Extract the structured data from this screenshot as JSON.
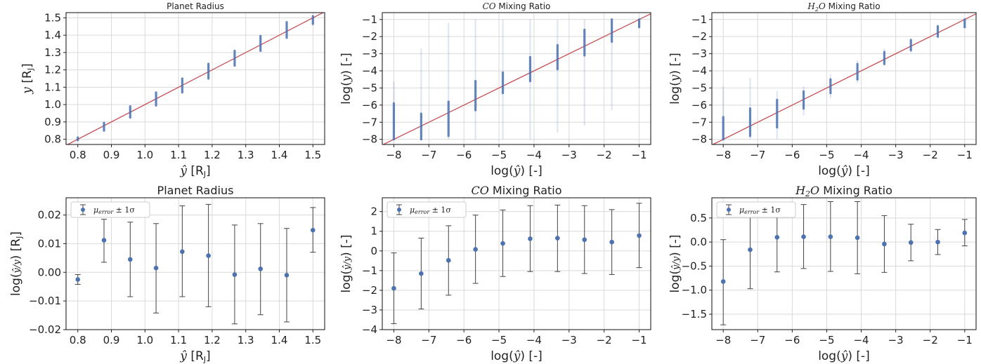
{
  "colors": {
    "series": "#4c72b0",
    "diagonal": "#c44e52",
    "errorbar": "#444444",
    "grid": "#d9d9d9",
    "axis": "#222222"
  },
  "chart_data": [
    {
      "id": "scatter-planet-radius",
      "type": "scatter",
      "title": "Planet Radius",
      "xlabel": "ŷ [RJ]",
      "ylabel": "y [RJ]",
      "xlim": [
        0.765,
        1.535
      ],
      "ylim": [
        0.77,
        1.53
      ],
      "xticks": [
        "0.8",
        "0.9",
        "1.0",
        "1.1",
        "1.2",
        "1.3",
        "1.4",
        "1.5"
      ],
      "xtick_values": [
        0.8,
        0.9,
        1.0,
        1.1,
        1.2,
        1.3,
        1.4,
        1.5
      ],
      "yticks": [
        "0.8",
        "0.9",
        "1.0",
        "1.1",
        "1.2",
        "1.3",
        "1.4",
        "1.5"
      ],
      "ytick_values": [
        0.8,
        0.9,
        1.0,
        1.1,
        1.2,
        1.3,
        1.4,
        1.5
      ],
      "grid": true,
      "identity_line": true,
      "columns": [
        {
          "x": 0.8,
          "y_low": 0.795,
          "y_high": 0.81
        },
        {
          "x": 0.878,
          "y_low": 0.85,
          "y_high": 0.895
        },
        {
          "x": 0.956,
          "y_low": 0.925,
          "y_high": 0.99
        },
        {
          "x": 1.033,
          "y_low": 0.995,
          "y_high": 1.07
        },
        {
          "x": 1.111,
          "y_low": 1.07,
          "y_high": 1.15
        },
        {
          "x": 1.189,
          "y_low": 1.15,
          "y_high": 1.235
        },
        {
          "x": 1.267,
          "y_low": 1.225,
          "y_high": 1.31
        },
        {
          "x": 1.344,
          "y_low": 1.31,
          "y_high": 1.395
        },
        {
          "x": 1.422,
          "y_low": 1.385,
          "y_high": 1.475
        },
        {
          "x": 1.5,
          "y_low": 1.465,
          "y_high": 1.51
        }
      ]
    },
    {
      "id": "scatter-co-mixing",
      "type": "scatter",
      "title": "CO Mixing Ratio",
      "xlabel": "log(ŷ) [-]",
      "ylabel": "log(y) [-]",
      "xlim": [
        -8.33,
        -0.67
      ],
      "ylim": [
        -8.3,
        -0.6
      ],
      "xticks": [
        "−8",
        "−7",
        "−6",
        "−5",
        "−4",
        "−3",
        "−2",
        "−1"
      ],
      "xtick_values": [
        -8,
        -7,
        -6,
        -5,
        -4,
        -3,
        -2,
        -1
      ],
      "yticks": [
        "−8",
        "−7",
        "−6",
        "−5",
        "−4",
        "−3",
        "−2",
        "−1"
      ],
      "ytick_values": [
        -8,
        -7,
        -6,
        -5,
        -4,
        -3,
        -2,
        -1
      ],
      "grid": true,
      "identity_line": true,
      "columns": [
        {
          "x": -8.0,
          "y_low": -8.0,
          "y_high": -4.6,
          "dense_low": -8.0,
          "dense_high": -5.9
        },
        {
          "x": -7.22,
          "y_low": -8.0,
          "y_high": -2.7,
          "dense_low": -8.0,
          "dense_high": -6.5
        },
        {
          "x": -6.44,
          "y_low": -8.0,
          "y_high": -1.2,
          "dense_low": -7.8,
          "dense_high": -5.8
        },
        {
          "x": -5.67,
          "y_low": -8.0,
          "y_high": -1.0,
          "dense_low": -6.3,
          "dense_high": -4.6
        },
        {
          "x": -4.89,
          "y_low": -8.0,
          "y_high": -1.0,
          "dense_low": -5.3,
          "dense_high": -4.1
        },
        {
          "x": -4.11,
          "y_low": -8.0,
          "y_high": -1.0,
          "dense_low": -4.6,
          "dense_high": -3.2
        },
        {
          "x": -3.33,
          "y_low": -7.6,
          "y_high": -1.0,
          "dense_low": -3.9,
          "dense_high": -2.5
        },
        {
          "x": -2.56,
          "y_low": -7.2,
          "y_high": -1.0,
          "dense_low": -3.1,
          "dense_high": -1.6
        },
        {
          "x": -1.78,
          "y_low": -6.3,
          "y_high": -1.0,
          "dense_low": -2.3,
          "dense_high": -1.0
        },
        {
          "x": -1.0,
          "y_low": -1.5,
          "y_high": -1.0,
          "dense_low": -1.45,
          "dense_high": -1.0
        }
      ]
    },
    {
      "id": "scatter-h2o-mixing",
      "type": "scatter",
      "title": "H2O Mixing Ratio",
      "xlabel": "log(ŷ) [-]",
      "ylabel": "log(y) [-]",
      "xlim": [
        -8.33,
        -0.67
      ],
      "ylim": [
        -8.3,
        -0.6
      ],
      "xticks": [
        "−8",
        "−7",
        "−6",
        "−5",
        "−4",
        "−3",
        "−2",
        "−1"
      ],
      "xtick_values": [
        -8,
        -7,
        -6,
        -5,
        -4,
        -3,
        -2,
        -1
      ],
      "yticks": [
        "−8",
        "−7",
        "−6",
        "−5",
        "−4",
        "−3",
        "−2",
        "−1"
      ],
      "ytick_values": [
        -8,
        -7,
        -6,
        -5,
        -4,
        -3,
        -2,
        -1
      ],
      "grid": true,
      "identity_line": true,
      "columns": [
        {
          "x": -8.0,
          "y_low": -8.0,
          "y_high": -4.9,
          "dense_low": -8.0,
          "dense_high": -6.7
        },
        {
          "x": -7.22,
          "y_low": -8.0,
          "y_high": -4.4,
          "dense_low": -7.8,
          "dense_high": -6.2
        },
        {
          "x": -6.44,
          "y_low": -8.0,
          "y_high": -5.2,
          "dense_low": -7.3,
          "dense_high": -5.7
        },
        {
          "x": -5.67,
          "y_low": -6.6,
          "y_high": -4.9,
          "dense_low": -6.2,
          "dense_high": -5.2
        },
        {
          "x": -4.89,
          "y_low": -5.6,
          "y_high": -4.2,
          "dense_low": -5.3,
          "dense_high": -4.5
        },
        {
          "x": -4.11,
          "y_low": -4.7,
          "y_high": -3.4,
          "dense_low": -4.5,
          "dense_high": -3.6
        },
        {
          "x": -3.33,
          "y_low": -3.7,
          "y_high": -2.7,
          "dense_low": -3.6,
          "dense_high": -2.9
        },
        {
          "x": -2.56,
          "y_low": -2.9,
          "y_high": -2.1,
          "dense_low": -2.8,
          "dense_high": -2.2
        },
        {
          "x": -1.78,
          "y_low": -2.1,
          "y_high": -1.3,
          "dense_low": -2.0,
          "dense_high": -1.4
        },
        {
          "x": -1.0,
          "y_low": -1.5,
          "y_high": -1.0,
          "dense_low": -1.45,
          "dense_high": -1.0
        }
      ]
    },
    {
      "id": "error-planet-radius",
      "type": "errorbar",
      "title": "Planet Radius",
      "xlabel": "ŷ [RJ]",
      "ylabel": "log(ŷ/y) [RJ]",
      "legend": "μerror ± 1σ",
      "legend_position": "top-left",
      "xlim": [
        0.765,
        1.535
      ],
      "ylim": [
        -0.02,
        0.026
      ],
      "xticks": [
        "0.8",
        "0.9",
        "1.0",
        "1.1",
        "1.2",
        "1.3",
        "1.4",
        "1.5"
      ],
      "xtick_values": [
        0.8,
        0.9,
        1.0,
        1.1,
        1.2,
        1.3,
        1.4,
        1.5
      ],
      "yticks": [
        "−0.02",
        "−0.01",
        "0.00",
        "0.01",
        "0.02"
      ],
      "ytick_values": [
        -0.02,
        -0.01,
        0.0,
        0.01,
        0.02
      ],
      "grid": true,
      "x": [
        0.8,
        0.878,
        0.956,
        1.033,
        1.111,
        1.189,
        1.267,
        1.344,
        1.422,
        1.5
      ],
      "mean": [
        -0.0025,
        0.0112,
        0.0045,
        0.0015,
        0.0072,
        0.0058,
        -0.0008,
        0.0012,
        -0.001,
        0.0147
      ],
      "lower": [
        -0.0042,
        0.0035,
        -0.0085,
        -0.0142,
        -0.0085,
        -0.012,
        -0.018,
        -0.0148,
        -0.0173,
        0.007
      ],
      "upper": [
        -0.0008,
        0.0185,
        0.0175,
        0.017,
        0.0232,
        0.0237,
        0.0165,
        0.017,
        0.0153,
        0.0226
      ]
    },
    {
      "id": "error-co-mixing",
      "type": "errorbar",
      "title": "CO Mixing Ratio",
      "xlabel": "log(ŷ) [-]",
      "ylabel": "log(ŷ/y) [-]",
      "legend": "μerror ± 1σ",
      "legend_position": "top-left",
      "xlim": [
        -8.33,
        -0.67
      ],
      "ylim": [
        -4.0,
        2.7
      ],
      "xticks": [
        "−8",
        "−7",
        "−6",
        "−5",
        "−4",
        "−3",
        "−2",
        "−1"
      ],
      "xtick_values": [
        -8,
        -7,
        -6,
        -5,
        -4,
        -3,
        -2,
        -1
      ],
      "yticks": [
        "−4",
        "−3",
        "−2",
        "−1",
        "0",
        "1",
        "2"
      ],
      "ytick_values": [
        -4,
        -3,
        -2,
        -1,
        0,
        1,
        2
      ],
      "grid": true,
      "x": [
        -8.0,
        -7.22,
        -6.44,
        -5.67,
        -4.89,
        -4.11,
        -3.33,
        -2.56,
        -1.78,
        -1.0
      ],
      "mean": [
        -1.9,
        -1.15,
        -0.48,
        0.08,
        0.38,
        0.62,
        0.65,
        0.57,
        0.45,
        0.78
      ],
      "lower": [
        -3.7,
        -2.95,
        -2.25,
        -1.65,
        -1.3,
        -1.05,
        -1.05,
        -1.15,
        -1.2,
        -0.85
      ],
      "upper": [
        -0.1,
        0.65,
        1.28,
        1.82,
        2.08,
        2.3,
        2.33,
        2.3,
        2.1,
        2.42
      ]
    },
    {
      "id": "error-h2o-mixing",
      "type": "errorbar",
      "title": "H2O Mixing Ratio",
      "xlabel": "log(ŷ) [-]",
      "ylabel": "log(ŷ/y) [-]",
      "legend": "μerror ± 1σ",
      "legend_position": "top-left",
      "xlim": [
        -8.33,
        -0.67
      ],
      "ylim": [
        -1.82,
        0.92
      ],
      "xticks": [
        "−8",
        "−7",
        "−6",
        "−5",
        "−4",
        "−3",
        "−2",
        "−1"
      ],
      "xtick_values": [
        -8,
        -7,
        -6,
        -5,
        -4,
        -3,
        -2,
        -1
      ],
      "yticks": [
        "−1.5",
        "−1.0",
        "−0.5",
        "0.0",
        "0.5"
      ],
      "ytick_values": [
        -1.5,
        -1.0,
        -0.5,
        0.0,
        0.5
      ],
      "grid": true,
      "x": [
        -8.0,
        -7.22,
        -6.44,
        -5.67,
        -4.89,
        -4.11,
        -3.33,
        -2.56,
        -1.78,
        -1.0
      ],
      "mean": [
        -0.82,
        -0.16,
        0.1,
        0.11,
        0.11,
        0.09,
        -0.04,
        -0.01,
        0.0,
        0.19
      ],
      "lower": [
        -1.72,
        -0.97,
        -0.62,
        -0.55,
        -0.61,
        -0.66,
        -0.63,
        -0.39,
        -0.26,
        -0.08
      ],
      "upper": [
        0.05,
        0.64,
        0.78,
        0.78,
        0.84,
        0.84,
        0.55,
        0.37,
        0.26,
        0.47
      ]
    }
  ]
}
